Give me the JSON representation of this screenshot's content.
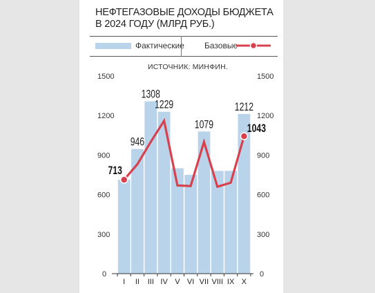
{
  "title_line1": "НЕФТЕГАЗОВЫЕ ДОХОДЫ БЮДЖЕТА",
  "title_line2": "В 2024 ГОДУ (МЛРД РУБ.)",
  "legend": {
    "actual": "Фактические",
    "base": "Базовые"
  },
  "source": "ИСТОЧНИК: МИНФИН.",
  "colors": {
    "bar": "#b8d3ea",
    "line": "#d7414e",
    "marker_outline": "#ffffff"
  },
  "chart_data": {
    "type": "bar",
    "categories": [
      "I",
      "II",
      "III",
      "IV",
      "V",
      "VI",
      "VII",
      "VIII",
      "IX",
      "X"
    ],
    "series": [
      {
        "name": "Фактические",
        "type": "bar",
        "values": [
          713,
          946,
          1308,
          1229,
          800,
          750,
          1079,
          780,
          780,
          1212
        ]
      },
      {
        "name": "Базовые",
        "type": "line",
        "values": [
          713,
          830,
          1000,
          1160,
          670,
          665,
          1000,
          660,
          690,
          1043
        ]
      }
    ],
    "bar_labels": [
      "",
      "946",
      "1308",
      "1229",
      "",
      "",
      "1079",
      "",
      "",
      "1212"
    ],
    "line_labels": [
      "713",
      "",
      "",
      "",
      "",
      "",
      "",
      "",
      "",
      "1043"
    ],
    "yticks": [
      0,
      300,
      600,
      900,
      1200,
      1500
    ],
    "ytick_labels": [
      "0",
      "300",
      "600",
      "900",
      "1200",
      "1500"
    ],
    "ylim": [
      0,
      1500
    ],
    "grid": false,
    "legend_position": "top"
  }
}
